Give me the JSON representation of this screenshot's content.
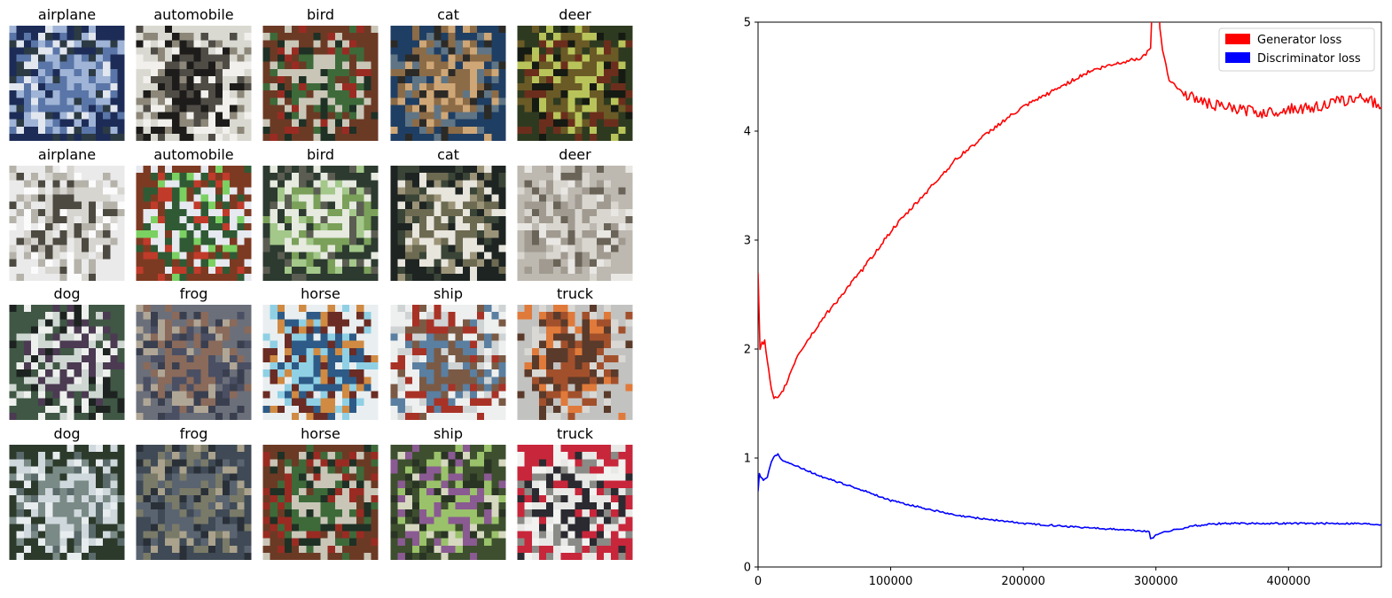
{
  "samples": [
    {
      "label": "airplane",
      "palette": [
        "#1d2c57",
        "#5a76a8",
        "#9fb4d6",
        "#e2e7ef",
        "#2c3a43"
      ]
    },
    {
      "label": "automobile",
      "palette": [
        "#d9d9d1",
        "#4f4c46",
        "#1d1c1a",
        "#8c8779",
        "#f2f0ec"
      ]
    },
    {
      "label": "bird",
      "palette": [
        "#6b3a25",
        "#3e6a3a",
        "#c9c6b8",
        "#9a2b22",
        "#1f3025"
      ]
    },
    {
      "label": "cat",
      "palette": [
        "#1f3e63",
        "#8c6b47",
        "#cfa777",
        "#2c2a26",
        "#5f7585"
      ]
    },
    {
      "label": "deer",
      "palette": [
        "#2e3a20",
        "#6a5a26",
        "#b8c45a",
        "#6b2e1c",
        "#151a12"
      ]
    },
    {
      "label": "airplane",
      "palette": [
        "#eaeaea",
        "#d7d5d0",
        "#4d4a42",
        "#b5b2aa",
        "#fbfbfb"
      ]
    },
    {
      "label": "automobile",
      "palette": [
        "#7d3a22",
        "#2f5a34",
        "#e6e9f0",
        "#c03b2a",
        "#7bd062"
      ]
    },
    {
      "label": "bird",
      "palette": [
        "#2c3a2f",
        "#7aa059",
        "#e6eadf",
        "#5b5d52",
        "#a3c88a"
      ]
    },
    {
      "label": "cat",
      "palette": [
        "#1e2422",
        "#6d6a52",
        "#e7e5dc",
        "#3a4537",
        "#9c9479"
      ]
    },
    {
      "label": "deer",
      "palette": [
        "#bdb8b0",
        "#a09a90",
        "#d9d6d0",
        "#6a6358",
        "#e9e7e3"
      ]
    },
    {
      "label": "dog",
      "palette": [
        "#3f5744",
        "#cfd7d2",
        "#4b3a52",
        "#eef0ee",
        "#1d2320"
      ]
    },
    {
      "label": "frog",
      "palette": [
        "#6b6f7a",
        "#8a6a5a",
        "#4a4f63",
        "#b0a696",
        "#3a3f4f"
      ]
    },
    {
      "label": "horse",
      "palette": [
        "#e9eef0",
        "#2d5a86",
        "#8fd0e5",
        "#6a2c24",
        "#d08a42"
      ]
    },
    {
      "label": "ship",
      "palette": [
        "#eef0f0",
        "#7a5a45",
        "#5a7fa0",
        "#cfd3d4",
        "#a83226"
      ]
    },
    {
      "label": "truck",
      "palette": [
        "#c2c2c0",
        "#a2502c",
        "#5a3a2a",
        "#d9d8d4",
        "#e07a3a"
      ]
    },
    {
      "label": "dog",
      "palette": [
        "#2c3a2c",
        "#cfd8dc",
        "#7a8a86",
        "#5a6a6a",
        "#e7ecee"
      ]
    },
    {
      "label": "frog",
      "palette": [
        "#3f4a56",
        "#7a7a68",
        "#5a6470",
        "#aaa28c",
        "#2a3038"
      ]
    },
    {
      "label": "horse",
      "palette": [
        "#6b3a25",
        "#3e6a3a",
        "#c9c6b8",
        "#9a2b22",
        "#1f3025"
      ]
    },
    {
      "label": "ship",
      "palette": [
        "#3d4f2e",
        "#8a5a92",
        "#9ac26a",
        "#d6d8c0",
        "#2a3424"
      ]
    },
    {
      "label": "truck",
      "palette": [
        "#c8263a",
        "#e8e8e6",
        "#2a2a30",
        "#8a8a86",
        "#f2f2f0"
      ]
    }
  ],
  "chart_data": {
    "type": "line",
    "title": "",
    "xlabel": "",
    "ylabel": "",
    "xlim": [
      0,
      470000
    ],
    "ylim": [
      0,
      5
    ],
    "xticks": [
      0,
      100000,
      200000,
      300000,
      400000
    ],
    "yticks": [
      0,
      1,
      2,
      3,
      4,
      5
    ],
    "grid": false,
    "legend": "top-right",
    "series": [
      {
        "name": "Generator loss",
        "color": "#ff0000",
        "x": [
          0,
          1500,
          3000,
          5000,
          8000,
          10000,
          12000,
          15000,
          17000,
          20000,
          30000,
          50000,
          80000,
          100000,
          120000,
          150000,
          180000,
          200000,
          230000,
          250000,
          270000,
          290000,
          296000,
          297000,
          298000,
          300000,
          302000,
          303000,
          305000,
          310000,
          320000,
          340000,
          360000,
          380000,
          400000,
          420000,
          440000,
          460000,
          470000
        ],
        "y": [
          2.7,
          2.0,
          2.05,
          2.07,
          1.8,
          1.62,
          1.55,
          1.54,
          1.58,
          1.65,
          1.95,
          2.3,
          2.75,
          3.08,
          3.35,
          3.75,
          4.05,
          4.22,
          4.42,
          4.55,
          4.62,
          4.68,
          4.75,
          5.1,
          5.3,
          5.5,
          5.2,
          4.95,
          4.75,
          4.48,
          4.35,
          4.25,
          4.2,
          4.17,
          4.2,
          4.22,
          4.28,
          4.3,
          4.22
        ]
      },
      {
        "name": "Discriminator loss",
        "color": "#0000ff",
        "x": [
          0,
          1000,
          2000,
          4000,
          7000,
          10000,
          13000,
          15000,
          17000,
          20000,
          30000,
          50000,
          80000,
          100000,
          150000,
          200000,
          250000,
          290000,
          295000,
          296000,
          298000,
          300000,
          310000,
          330000,
          350000,
          400000,
          450000,
          470000
        ],
        "y": [
          0.7,
          0.85,
          0.82,
          0.8,
          0.83,
          0.97,
          1.02,
          1.04,
          1.0,
          0.97,
          0.92,
          0.82,
          0.7,
          0.61,
          0.47,
          0.4,
          0.36,
          0.33,
          0.32,
          0.26,
          0.27,
          0.3,
          0.33,
          0.38,
          0.4,
          0.4,
          0.4,
          0.39
        ]
      }
    ]
  }
}
